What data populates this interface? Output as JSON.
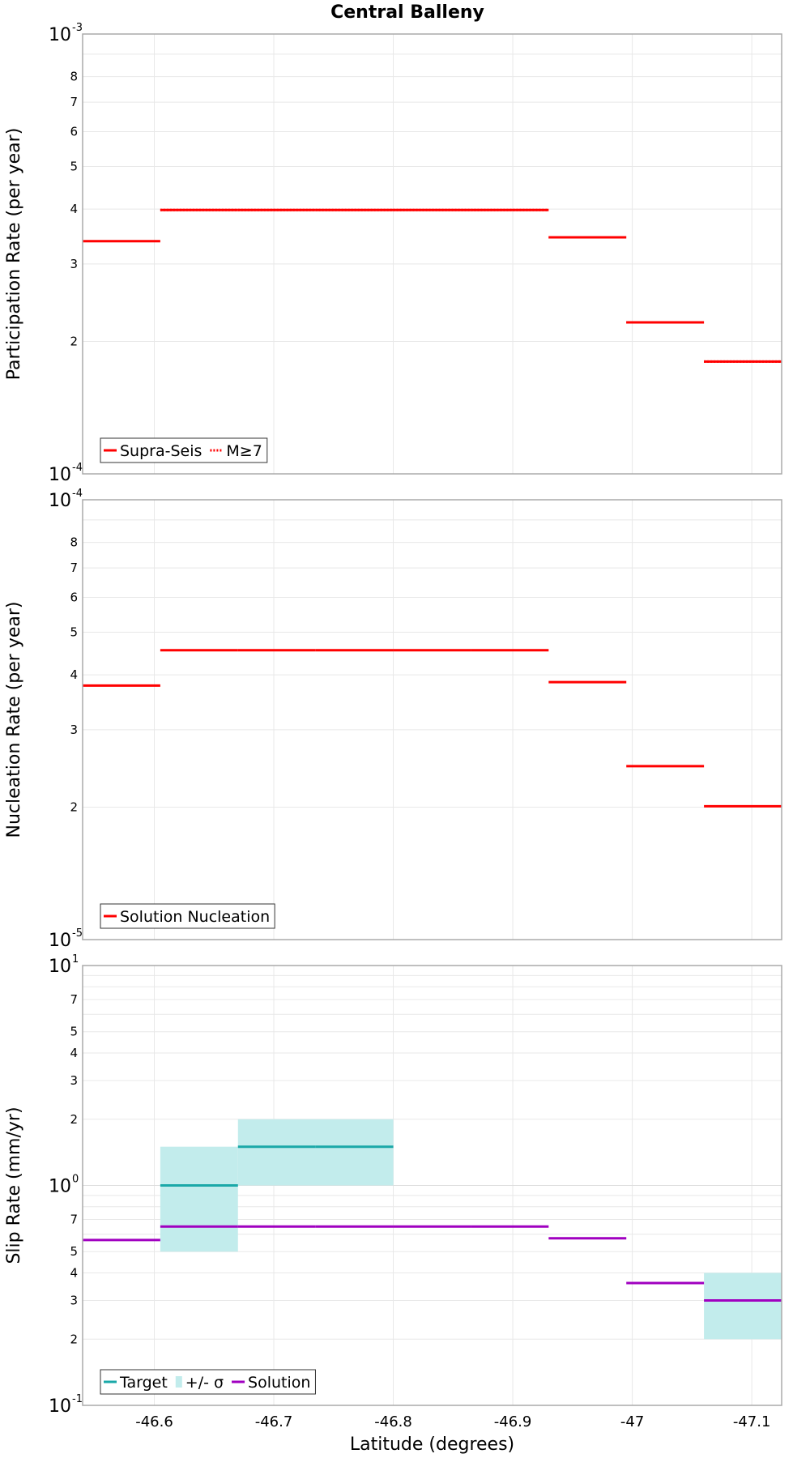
{
  "title": "Central Balleny",
  "colors": {
    "red": "#ff0000",
    "target": "#1aa8a8",
    "sigma": "#c2ecec",
    "solution": "#a000c0",
    "grid": "#e8e8e8",
    "frame": "#aaaaaa"
  },
  "chart_data": [
    {
      "type": "line",
      "name": "participation",
      "ylabel": "Participation Rate (per year)",
      "yscale": "log",
      "ylim": [
        0.0001,
        0.001
      ],
      "xlim": [
        -46.54,
        -47.125
      ],
      "major_ticks": [
        {
          "mantissa": "10",
          "exp": "-4",
          "value": 0.0001
        },
        {
          "mantissa": "10",
          "exp": "-3",
          "value": 0.001
        }
      ],
      "minor_ticks": [
        {
          "label": "2",
          "value": 0.0002
        },
        {
          "label": "3",
          "value": 0.0003
        },
        {
          "label": "4",
          "value": 0.0004
        },
        {
          "label": "5",
          "value": 0.0005
        },
        {
          "label": "6",
          "value": 0.0006
        },
        {
          "label": "7",
          "value": 0.0007
        },
        {
          "label": "8",
          "value": 0.0008
        }
      ],
      "series": [
        {
          "name": "Supra-Seis",
          "style": "solid",
          "segments": [
            {
              "x0": -46.54,
              "x1": -46.605,
              "y": 0.000338
            },
            {
              "x0": -46.605,
              "x1": -46.67,
              "y": 0.000398
            },
            {
              "x0": -46.67,
              "x1": -46.735,
              "y": 0.000398
            },
            {
              "x0": -46.735,
              "x1": -46.8,
              "y": 0.000398
            },
            {
              "x0": -46.8,
              "x1": -46.865,
              "y": 0.000398
            },
            {
              "x0": -46.865,
              "x1": -46.93,
              "y": 0.000398
            },
            {
              "x0": -46.93,
              "x1": -46.995,
              "y": 0.000345
            },
            {
              "x0": -46.995,
              "x1": -47.06,
              "y": 0.000221
            },
            {
              "x0": -47.06,
              "x1": -47.125,
              "y": 0.00018
            }
          ]
        },
        {
          "name": "M≥7",
          "style": "dotted",
          "segments": [
            {
              "x0": -46.605,
              "x1": -46.67,
              "y": 0.000398
            },
            {
              "x0": -46.67,
              "x1": -46.735,
              "y": 0.000398
            },
            {
              "x0": -46.735,
              "x1": -46.8,
              "y": 0.000398
            },
            {
              "x0": -46.8,
              "x1": -46.865,
              "y": 0.000398
            },
            {
              "x0": -46.865,
              "x1": -46.93,
              "y": 0.000398
            },
            {
              "x0": -46.93,
              "x1": -46.995,
              "y": 0.000345
            },
            {
              "x0": -46.995,
              "x1": -47.06,
              "y": 0.000221
            },
            {
              "x0": -47.06,
              "x1": -47.125,
              "y": 0.00018
            }
          ]
        }
      ],
      "legend": [
        {
          "label": "Supra-Seis",
          "style": "solid"
        },
        {
          "label": "M≥7",
          "style": "dotted"
        }
      ],
      "legend_position": "bottom-left"
    },
    {
      "type": "line",
      "name": "nucleation",
      "ylabel": "Nucleation Rate (per year)",
      "yscale": "log",
      "ylim": [
        1e-05,
        0.0001
      ],
      "xlim": [
        -46.54,
        -47.125
      ],
      "major_ticks": [
        {
          "mantissa": "10",
          "exp": "-5",
          "value": 1e-05
        },
        {
          "mantissa": "10",
          "exp": "-4",
          "value": 0.0001
        }
      ],
      "minor_ticks": [
        {
          "label": "2",
          "value": 2e-05
        },
        {
          "label": "3",
          "value": 3e-05
        },
        {
          "label": "4",
          "value": 4e-05
        },
        {
          "label": "5",
          "value": 5e-05
        },
        {
          "label": "6",
          "value": 6e-05
        },
        {
          "label": "7",
          "value": 7e-05
        },
        {
          "label": "8",
          "value": 8e-05
        }
      ],
      "series": [
        {
          "name": "Solution Nucleation",
          "style": "solid",
          "segments": [
            {
              "x0": -46.54,
              "x1": -46.605,
              "y": 3.78e-05
            },
            {
              "x0": -46.605,
              "x1": -46.67,
              "y": 4.55e-05
            },
            {
              "x0": -46.67,
              "x1": -46.735,
              "y": 4.55e-05
            },
            {
              "x0": -46.735,
              "x1": -46.8,
              "y": 4.55e-05
            },
            {
              "x0": -46.8,
              "x1": -46.865,
              "y": 4.55e-05
            },
            {
              "x0": -46.865,
              "x1": -46.93,
              "y": 4.55e-05
            },
            {
              "x0": -46.93,
              "x1": -46.995,
              "y": 3.85e-05
            },
            {
              "x0": -46.995,
              "x1": -47.06,
              "y": 2.48e-05
            },
            {
              "x0": -47.06,
              "x1": -47.125,
              "y": 2.01e-05
            }
          ]
        }
      ],
      "legend": [
        {
          "label": "Solution Nucleation",
          "style": "solid"
        }
      ],
      "legend_position": "bottom-left"
    },
    {
      "type": "line",
      "name": "slip",
      "ylabel": "Slip Rate (mm/yr)",
      "xlabel": "Latitude (degrees)",
      "yscale": "log",
      "ylim": [
        0.1,
        10
      ],
      "xlim": [
        -46.54,
        -47.125
      ],
      "x_ticks": [
        {
          "label": "-46.6",
          "value": -46.6
        },
        {
          "label": "-46.7",
          "value": -46.7
        },
        {
          "label": "-46.8",
          "value": -46.8
        },
        {
          "label": "-46.9",
          "value": -46.9
        },
        {
          "label": "-47",
          "value": -47.0
        },
        {
          "label": "-47.1",
          "value": -47.1
        }
      ],
      "major_ticks": [
        {
          "mantissa": "10",
          "exp": "-1",
          "value": 0.1
        },
        {
          "mantissa": "10",
          "exp": "0",
          "value": 1
        },
        {
          "mantissa": "10",
          "exp": "1",
          "value": 10
        }
      ],
      "minor_ticks": [
        {
          "label": "2",
          "value": 0.2
        },
        {
          "label": "3",
          "value": 0.3
        },
        {
          "label": "4",
          "value": 0.4
        },
        {
          "label": "5",
          "value": 0.5
        },
        {
          "label": "7",
          "value": 0.7
        },
        {
          "label": "2",
          "value": 2
        },
        {
          "label": "3",
          "value": 3
        },
        {
          "label": "4",
          "value": 4
        },
        {
          "label": "5",
          "value": 5
        },
        {
          "label": "7",
          "value": 7
        }
      ],
      "sigma_bands": [
        {
          "x0": -46.605,
          "x1": -46.67,
          "y0": 0.5,
          "y1": 1.5
        },
        {
          "x0": -46.67,
          "x1": -46.8,
          "y0": 1.0,
          "y1": 2.0
        },
        {
          "x0": -47.06,
          "x1": -47.125,
          "y0": 0.2,
          "y1": 0.4
        }
      ],
      "series": [
        {
          "name": "Target",
          "style": "solid",
          "segments": [
            {
              "x0": -46.605,
              "x1": -46.67,
              "y": 1.0
            },
            {
              "x0": -46.67,
              "x1": -46.735,
              "y": 1.5
            },
            {
              "x0": -46.735,
              "x1": -46.8,
              "y": 1.5
            }
          ]
        },
        {
          "name": "Solution",
          "style": "solid",
          "segments": [
            {
              "x0": -46.54,
              "x1": -46.605,
              "y": 0.565
            },
            {
              "x0": -46.605,
              "x1": -46.67,
              "y": 0.65
            },
            {
              "x0": -46.67,
              "x1": -46.735,
              "y": 0.65
            },
            {
              "x0": -46.735,
              "x1": -46.8,
              "y": 0.65
            },
            {
              "x0": -46.8,
              "x1": -46.865,
              "y": 0.65
            },
            {
              "x0": -46.865,
              "x1": -46.93,
              "y": 0.65
            },
            {
              "x0": -46.93,
              "x1": -46.995,
              "y": 0.575
            },
            {
              "x0": -46.995,
              "x1": -47.06,
              "y": 0.36
            },
            {
              "x0": -47.06,
              "x1": -47.125,
              "y": 0.3
            }
          ]
        }
      ],
      "legend": [
        {
          "label": "Target",
          "style": "solid"
        },
        {
          "label": "+/- σ",
          "style": "band"
        },
        {
          "label": "Solution",
          "style": "solid"
        }
      ],
      "legend_position": "bottom-left"
    }
  ]
}
